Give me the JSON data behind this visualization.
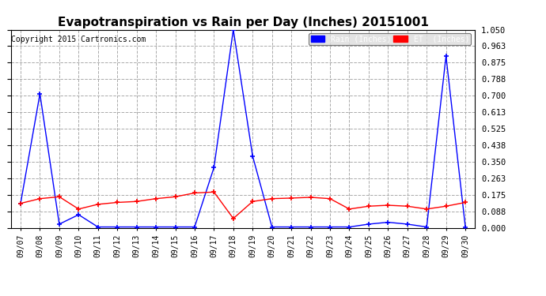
{
  "title": "Evapotranspiration vs Rain per Day (Inches) 20151001",
  "copyright": "Copyright 2015 Cartronics.com",
  "dates": [
    "09/07",
    "09/08",
    "09/09",
    "09/10",
    "09/11",
    "09/12",
    "09/13",
    "09/14",
    "09/15",
    "09/16",
    "09/17",
    "09/18",
    "09/19",
    "09/20",
    "09/21",
    "09/22",
    "09/23",
    "09/24",
    "09/25",
    "09/26",
    "09/27",
    "09/28",
    "09/29",
    "09/30"
  ],
  "rain": [
    0.13,
    0.71,
    0.02,
    0.07,
    0.005,
    0.005,
    0.005,
    0.005,
    0.005,
    0.005,
    0.32,
    1.05,
    0.38,
    0.005,
    0.005,
    0.005,
    0.005,
    0.005,
    0.02,
    0.03,
    0.02,
    0.005,
    0.91,
    0.005
  ],
  "et": [
    0.13,
    0.155,
    0.165,
    0.1,
    0.125,
    0.135,
    0.14,
    0.155,
    0.165,
    0.185,
    0.19,
    0.05,
    0.14,
    0.155,
    0.158,
    0.162,
    0.155,
    0.1,
    0.115,
    0.12,
    0.115,
    0.1,
    0.115,
    0.135
  ],
  "ylim_min": 0.0,
  "ylim_max": 1.05,
  "yticks": [
    0.0,
    0.088,
    0.175,
    0.263,
    0.35,
    0.438,
    0.525,
    0.613,
    0.7,
    0.788,
    0.875,
    0.963,
    1.05
  ],
  "rain_color": "#0000ff",
  "et_color": "#ff0000",
  "grid_color": "#aaaaaa",
  "background_color": "#ffffff",
  "title_fontsize": 11,
  "copyright_fontsize": 7,
  "legend_rain_label": "Rain (Inches)",
  "legend_et_label": "ET  (Inches)",
  "legend_rain_bg": "#0000ff",
  "legend_et_bg": "#ff0000"
}
